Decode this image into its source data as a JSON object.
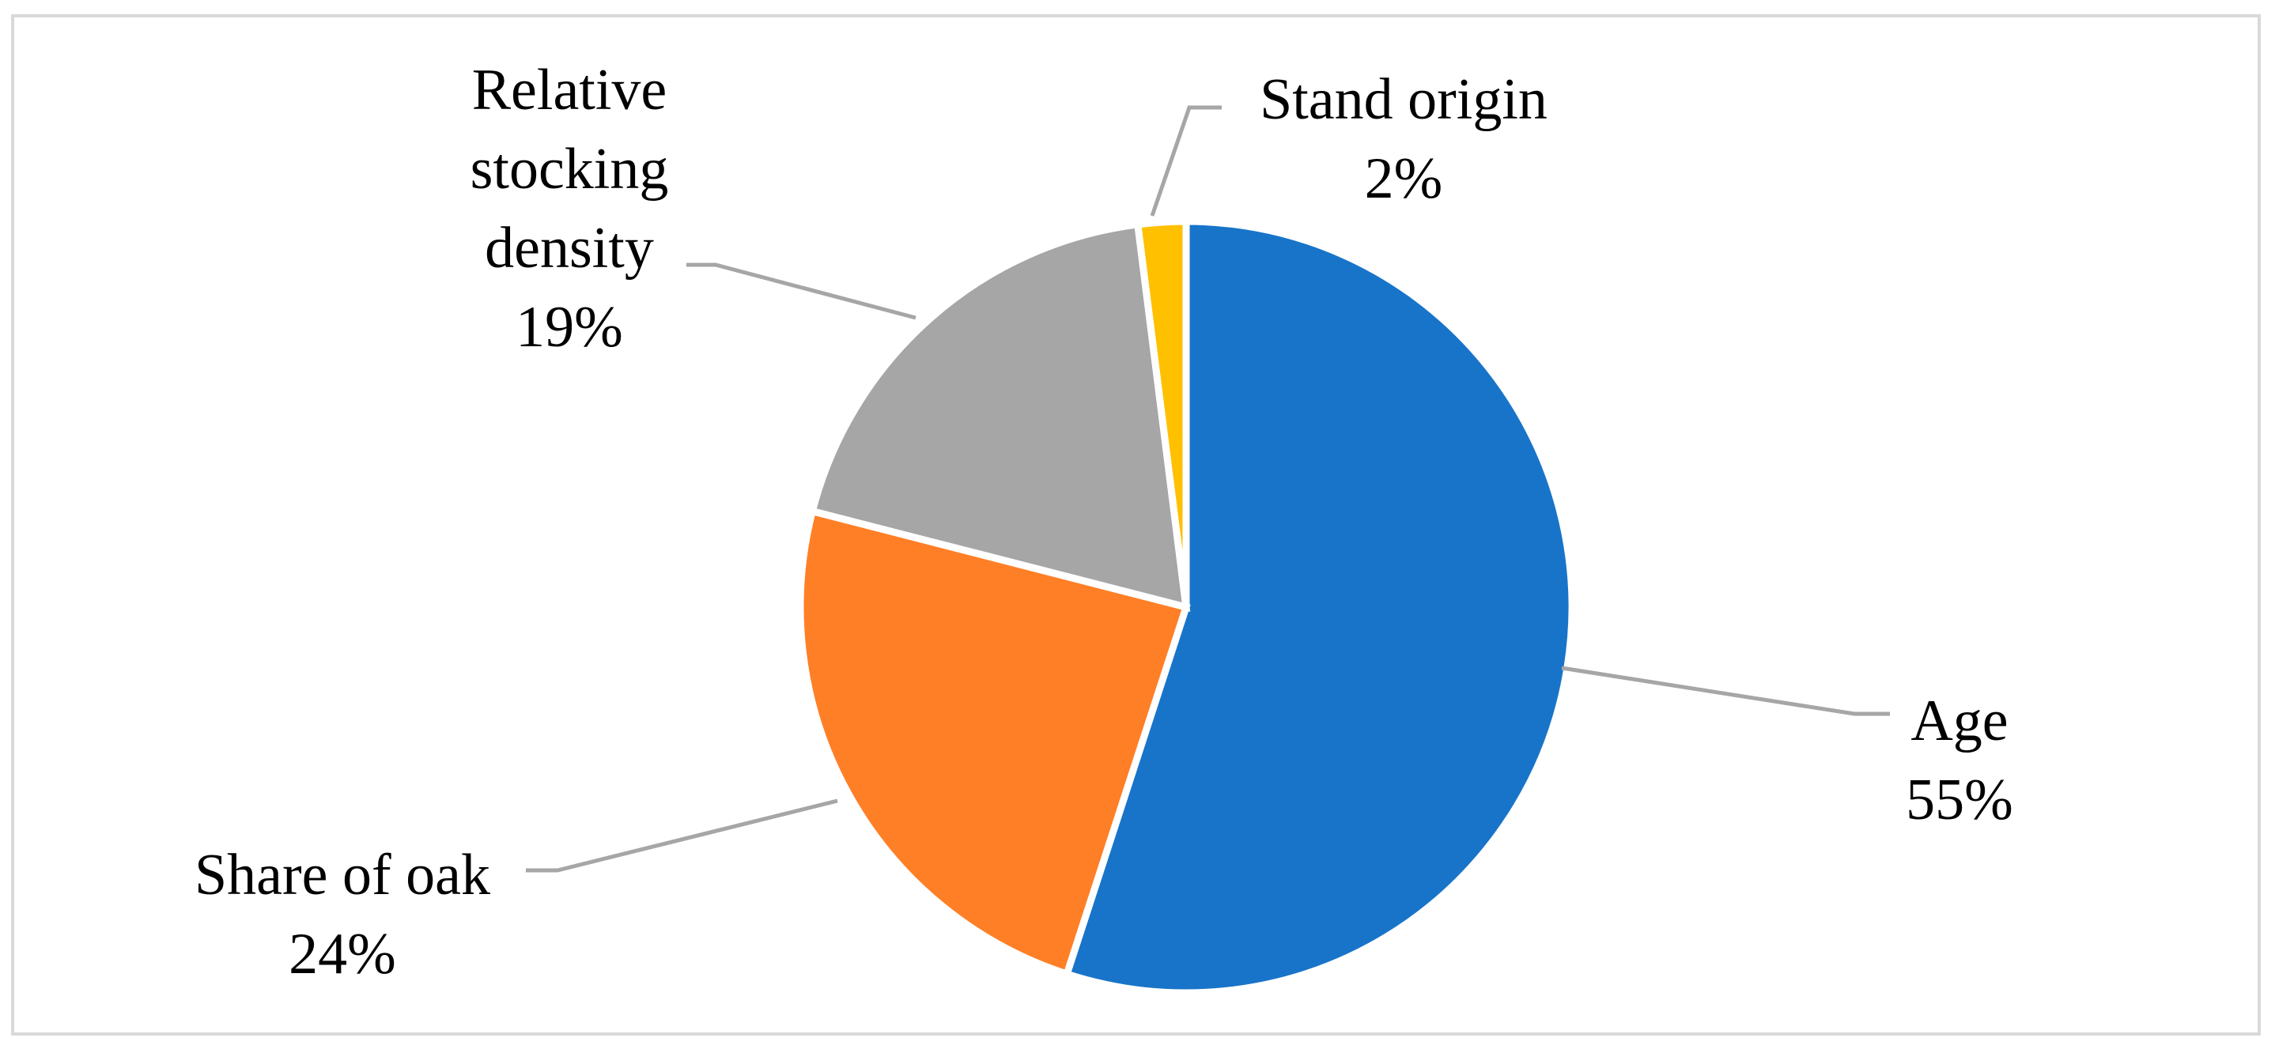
{
  "chart_data": {
    "type": "pie",
    "title": "",
    "start_angle_deg": 0,
    "direction": "clockwise",
    "slices": [
      {
        "label": "Age",
        "value": 55,
        "value_label": "55%",
        "color": "#1874c9"
      },
      {
        "label": "Share of oak",
        "value": 24,
        "value_label": "24%",
        "color": "#ff7f27"
      },
      {
        "label": "Relative stocking density",
        "label_lines": [
          "Relative",
          "stocking",
          "density"
        ],
        "value": 19,
        "value_label": "19%",
        "color": "#a6a6a6"
      },
      {
        "label": "Stand origin",
        "value": 2,
        "value_label": "2%",
        "color": "#ffc000"
      }
    ],
    "legend": "none",
    "data_labels": "outside-with-leader-lines"
  }
}
